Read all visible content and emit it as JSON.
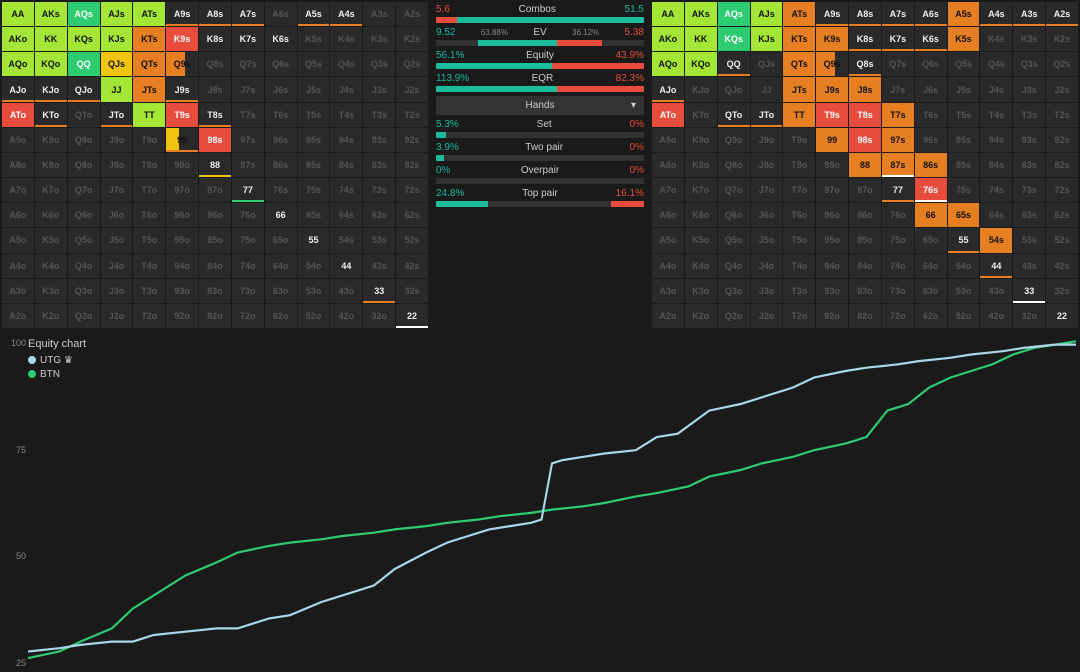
{
  "ranks": [
    "A",
    "K",
    "Q",
    "J",
    "T",
    "9",
    "8",
    "7",
    "6",
    "5",
    "4",
    "3",
    "2"
  ],
  "colors": {
    "bg": "#1a1a1a",
    "cell_bg": "#2a2a2a",
    "dim_text": "#555555",
    "text": "#eeeeee",
    "teal": "#1abc9c",
    "red": "#e74c3c",
    "orange": "#e67e22",
    "yellow": "#f1c40f",
    "green": "#2ecc71",
    "lime": "#a3e635",
    "utg_line": "#a8d8e8",
    "btn_line": "#2ecc71"
  },
  "grid_left": {
    "AA": {
      "fill": "#a3e635",
      "pct": 100
    },
    "AKs": {
      "fill": "#a3e635",
      "pct": 100
    },
    "AQs": {
      "fill": "#2ecc71",
      "pct": 100
    },
    "AJs": {
      "fill": "#a3e635",
      "pct": 100
    },
    "ATs": {
      "fill": "#a3e635",
      "pct": 100
    },
    "A9s": {
      "under": "#e67e22"
    },
    "A8s": {
      "under": "#e67e22"
    },
    "A7s": {
      "under": "#e67e22"
    },
    "A5s": {
      "under": "#e67e22"
    },
    "A4s": {
      "under": "#e67e22"
    },
    "AKo": {
      "fill": "#a3e635",
      "pct": 100
    },
    "KK": {
      "fill": "#a3e635",
      "pct": 100
    },
    "KQs": {
      "fill": "#a3e635",
      "pct": 100
    },
    "KJs": {
      "fill": "#a3e635",
      "pct": 100
    },
    "KTs": {
      "fill": "#e67e22",
      "pct": 100
    },
    "K9s": {
      "fill": "#e74c3c",
      "pct": 100
    },
    "K8s": {
      "text": 1
    },
    "K7s": {
      "text": 1
    },
    "K6s": {
      "text": 1
    },
    "AQo": {
      "fill": "#a3e635",
      "pct": 100
    },
    "KQo": {
      "fill": "#a3e635",
      "pct": 100
    },
    "QQ": {
      "fill": "#2ecc71",
      "pct": 100
    },
    "QJs": {
      "fill": "#f1c40f",
      "pct": 100
    },
    "QTs": {
      "fill": "#e67e22",
      "pct": 100
    },
    "Q9s": {
      "fill": "#e67e22",
      "pct": 60
    },
    "AJo": {
      "text": 1,
      "under": "#e67e22"
    },
    "KJo": {
      "text": 1,
      "under": "#e67e22"
    },
    "QJo": {
      "text": 1,
      "under": "#e67e22"
    },
    "JJ": {
      "fill": "#a3e635",
      "pct": 100
    },
    "JTs": {
      "fill": "#e67e22",
      "pct": 100
    },
    "J9s": {
      "text": 1,
      "under": "#e67e22"
    },
    "ATo": {
      "fill": "#e74c3c",
      "pct": 100
    },
    "KTo": {
      "text": 1,
      "under": "#e67e22"
    },
    "JTo": {
      "text": 1,
      "under": "#e67e22"
    },
    "TT": {
      "fill": "#a3e635",
      "pct": 100
    },
    "T9s": {
      "fill": "#e74c3c",
      "pct": 100
    },
    "T8s": {
      "text": 1,
      "under": "#e67e22"
    },
    "99": {
      "text": 1,
      "fill": "#f1c40f",
      "pct": 40,
      "under": "#e67e22"
    },
    "98s": {
      "fill": "#e74c3c",
      "pct": 100
    },
    "88": {
      "text": 1,
      "under": "#f1c40f"
    },
    "77": {
      "text": 1,
      "under": "#2ecc71"
    },
    "66": {
      "text": 1
    },
    "55": {
      "text": 1
    },
    "44": {
      "text": 1
    },
    "33": {
      "text": 1,
      "under": "#e67e22"
    },
    "22": {
      "text": 1,
      "under": "#ffffff"
    }
  },
  "grid_right": {
    "AA": {
      "fill": "#a3e635",
      "pct": 100
    },
    "AKs": {
      "fill": "#a3e635",
      "pct": 100
    },
    "AQs": {
      "fill": "#2ecc71",
      "pct": 100
    },
    "AJs": {
      "fill": "#a3e635",
      "pct": 100
    },
    "ATs": {
      "fill": "#e67e22",
      "pct": 100
    },
    "A9s": {
      "under": "#e67e22"
    },
    "A8s": {
      "under": "#e67e22"
    },
    "A7s": {
      "under": "#e67e22"
    },
    "A6s": {
      "under": "#e67e22"
    },
    "A5s": {
      "fill": "#e67e22",
      "pct": 100
    },
    "A4s": {
      "under": "#e67e22"
    },
    "A3s": {
      "under": "#e67e22"
    },
    "A2s": {
      "under": "#e67e22"
    },
    "AKo": {
      "fill": "#a3e635",
      "pct": 100
    },
    "KK": {
      "fill": "#a3e635",
      "pct": 100
    },
    "KQs": {
      "fill": "#2ecc71",
      "pct": 100
    },
    "KJs": {
      "fill": "#a3e635",
      "pct": 100
    },
    "KTs": {
      "fill": "#e67e22",
      "pct": 100
    },
    "K9s": {
      "fill": "#e67e22",
      "pct": 100
    },
    "K8s": {
      "under": "#e67e22"
    },
    "K7s": {
      "under": "#e67e22"
    },
    "K6s": {
      "under": "#e67e22"
    },
    "K5s": {
      "fill": "#e67e22",
      "pct": 100
    },
    "AQo": {
      "fill": "#a3e635",
      "pct": 100
    },
    "KQo": {
      "fill": "#a3e635",
      "pct": 100
    },
    "QQ": {
      "under": "#e67e22"
    },
    "QTs": {
      "fill": "#e67e22",
      "pct": 100
    },
    "Q9s": {
      "fill": "#e67e22",
      "pct": 60
    },
    "Q8s": {
      "under": "#e67e22"
    },
    "AJo": {
      "under": "#e67e22"
    },
    "JTs": {
      "fill": "#e67e22",
      "pct": 100
    },
    "J9s": {
      "fill": "#e67e22",
      "pct": 100
    },
    "J8s": {
      "fill": "#e67e22",
      "pct": 100
    },
    "ATo": {
      "fill": "#e74c3c",
      "pct": 100
    },
    "QTo": {
      "text": 1,
      "under": "#e67e22"
    },
    "JTo": {
      "text": 1,
      "under": "#e67e22"
    },
    "TT": {
      "fill": "#e67e22",
      "pct": 100
    },
    "T9s": {
      "fill": "#e74c3c",
      "pct": 100
    },
    "T8s": {
      "fill": "#e74c3c",
      "pct": 100
    },
    "T7s": {
      "fill": "#e67e22",
      "pct": 100
    },
    "99": {
      "fill": "#e67e22",
      "pct": 100
    },
    "98s": {
      "fill": "#e74c3c",
      "pct": 100
    },
    "97s": {
      "fill": "#e67e22",
      "pct": 100
    },
    "88": {
      "fill": "#e67e22",
      "pct": 100
    },
    "87s": {
      "fill": "#e67e22",
      "pct": 100,
      "under": "#ffffff"
    },
    "86s": {
      "fill": "#e67e22",
      "pct": 100
    },
    "77": {
      "under": "#e67e22"
    },
    "76s": {
      "fill": "#e74c3c",
      "pct": 100,
      "under": "#ffffff"
    },
    "66": {
      "fill": "#e67e22",
      "pct": 100
    },
    "65s": {
      "fill": "#e67e22",
      "pct": 100
    },
    "55": {
      "under": "#e67e22"
    },
    "54s": {
      "fill": "#e67e22",
      "pct": 100
    },
    "44": {
      "text": 1,
      "under": "#e67e22"
    },
    "33": {
      "text": 1,
      "under": "#ffffff"
    },
    "22": {
      "text": 1
    }
  },
  "stats": [
    {
      "label": "Combos",
      "l": "5.6",
      "r": "51.5",
      "l_color": "red",
      "r_color": "teal",
      "bar_l": 10,
      "bar_r": 90
    },
    {
      "label": "EV",
      "l": "9.52",
      "l_sub": "63.88%",
      "r_sub": "36.12%",
      "r": "5.38",
      "l_color": "teal",
      "r_color": "red",
      "bar_l": 64,
      "bar_r": 36,
      "bar_offset": 20
    },
    {
      "label": "Equity",
      "l": "56.1%",
      "r": "43.9%",
      "l_color": "teal",
      "r_color": "red",
      "bar_l": 56,
      "bar_r": 44
    },
    {
      "label": "EQR",
      "l": "113.9%",
      "r": "82.3%",
      "l_color": "teal",
      "r_color": "red",
      "bar_l": 58,
      "bar_r": 42
    }
  ],
  "hands_dropdown": "Hands",
  "hand_cats": [
    {
      "label": "Set",
      "l": "5.3%",
      "r": "0%",
      "bar_l": 5,
      "bar_r": 0
    },
    {
      "label": "Two pair",
      "l": "3.9%",
      "r": "0%",
      "bar_l": 4,
      "bar_r": 0
    },
    {
      "label": "Overpair",
      "l": "0%",
      "r": "0%",
      "bar_l": 0,
      "bar_r": 0
    },
    {
      "label": "Top pair",
      "l": "24.8%",
      "r": "16.1%",
      "bar_l": 25,
      "bar_r": 16
    }
  ],
  "chart": {
    "title": "Equity chart",
    "legend": [
      {
        "label": "UTG ♛",
        "color": "#a8d8e8"
      },
      {
        "label": "BTN",
        "color": "#2ecc71"
      }
    ],
    "yticks": [
      "100",
      "75",
      "50",
      "25"
    ],
    "ylim": [
      0,
      100
    ],
    "utg_points": [
      [
        0,
        5
      ],
      [
        3,
        6
      ],
      [
        5,
        7
      ],
      [
        8,
        8
      ],
      [
        10,
        8
      ],
      [
        12,
        10
      ],
      [
        15,
        11
      ],
      [
        18,
        12
      ],
      [
        20,
        12
      ],
      [
        23,
        15
      ],
      [
        25,
        16
      ],
      [
        28,
        20
      ],
      [
        30,
        22
      ],
      [
        33,
        25
      ],
      [
        35,
        30
      ],
      [
        38,
        35
      ],
      [
        40,
        38
      ],
      [
        42,
        40
      ],
      [
        44,
        42
      ],
      [
        46,
        43
      ],
      [
        48,
        44
      ],
      [
        49,
        45
      ],
      [
        50,
        62
      ],
      [
        51,
        63
      ],
      [
        53,
        64
      ],
      [
        55,
        65
      ],
      [
        58,
        66
      ],
      [
        60,
        70
      ],
      [
        62,
        71
      ],
      [
        65,
        78
      ],
      [
        68,
        80
      ],
      [
        70,
        82
      ],
      [
        73,
        85
      ],
      [
        75,
        88
      ],
      [
        78,
        90
      ],
      [
        80,
        91
      ],
      [
        83,
        92
      ],
      [
        85,
        93
      ],
      [
        88,
        94
      ],
      [
        90,
        95
      ],
      [
        93,
        96
      ],
      [
        95,
        97
      ],
      [
        98,
        98
      ],
      [
        100,
        98
      ]
    ],
    "btn_points": [
      [
        0,
        3
      ],
      [
        3,
        5
      ],
      [
        5,
        8
      ],
      [
        8,
        12
      ],
      [
        10,
        18
      ],
      [
        12,
        22
      ],
      [
        15,
        28
      ],
      [
        18,
        32
      ],
      [
        20,
        35
      ],
      [
        23,
        37
      ],
      [
        25,
        38
      ],
      [
        28,
        39
      ],
      [
        30,
        40
      ],
      [
        33,
        41
      ],
      [
        35,
        42
      ],
      [
        38,
        43
      ],
      [
        40,
        44
      ],
      [
        43,
        45
      ],
      [
        45,
        46
      ],
      [
        48,
        47
      ],
      [
        50,
        48
      ],
      [
        53,
        49
      ],
      [
        55,
        50
      ],
      [
        58,
        52
      ],
      [
        60,
        53
      ],
      [
        63,
        55
      ],
      [
        65,
        58
      ],
      [
        68,
        60
      ],
      [
        70,
        62
      ],
      [
        73,
        64
      ],
      [
        75,
        66
      ],
      [
        78,
        68
      ],
      [
        80,
        70
      ],
      [
        82,
        78
      ],
      [
        84,
        80
      ],
      [
        86,
        85
      ],
      [
        88,
        88
      ],
      [
        90,
        90
      ],
      [
        92,
        92
      ],
      [
        94,
        95
      ],
      [
        96,
        97
      ],
      [
        98,
        98
      ],
      [
        100,
        99
      ]
    ]
  }
}
